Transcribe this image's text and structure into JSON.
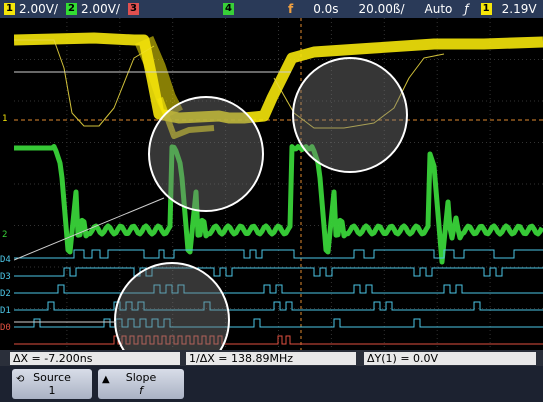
{
  "header": {
    "ch1": {
      "number": "1",
      "scale": "2.00V/",
      "color": "#f5e60a"
    },
    "ch2": {
      "number": "2",
      "scale": "2.00V/",
      "color": "#33dd33"
    },
    "ch3": {
      "number": "3",
      "color": "#e05050"
    },
    "ch4": {
      "number": "4",
      "color": "#38d038"
    },
    "trigger_marker": "f",
    "time_offset": "0.0s",
    "timebase": "20.00ß/",
    "trigger_mode": "Auto",
    "trigger_slope_icon": "rising-edge-icon",
    "trigger_source": "1",
    "trigger_level": "2.19V"
  },
  "channel_markers": {
    "ch1": "1",
    "ch2": "2",
    "digital": [
      "D4",
      "D3",
      "D2",
      "D1",
      "D0"
    ]
  },
  "measurements": {
    "delta_x": "ΔX = -7.200ns",
    "inv_delta_x": "1/ΔX = 138.89MHz",
    "delta_y": "ΔY(1) = 0.0V"
  },
  "softkeys": {
    "source": {
      "label": "Source",
      "value": "1",
      "icon": "rotate-knob-icon"
    },
    "slope": {
      "label": "Slope",
      "value": "f",
      "icon": "up-arrow-icon"
    }
  },
  "colors": {
    "ch1": "#f5e60a",
    "ch2": "#39d339",
    "digital": "#4cc6e6",
    "digital_ch0": "#e05040",
    "grid": "#3a3a3a",
    "trigger_line": "#e08a30",
    "topbar": "#2a3a58"
  }
}
